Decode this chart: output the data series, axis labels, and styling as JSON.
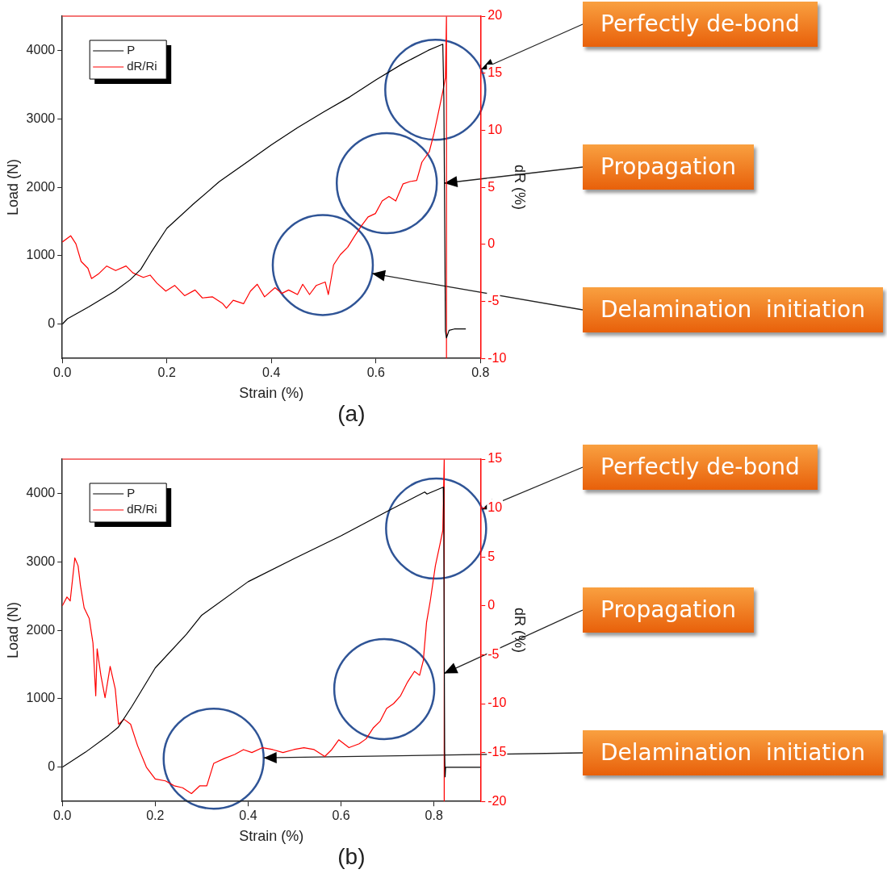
{
  "chart_data": [
    {
      "type": "line",
      "xlabel": "Strain (%)",
      "ylabel": "Load (N)",
      "y2label": "dR (%)",
      "xlim": [
        0,
        0.8
      ],
      "xticks": [
        {
          "value": 0,
          "label": "0.0"
        },
        0.2,
        0.4,
        0.6,
        0.8
      ],
      "ylim": [
        -500,
        4500
      ],
      "yticks": [
        0,
        1000,
        2000,
        3000,
        4000
      ],
      "y2lim": [
        -10,
        20
      ],
      "y2ticks": [
        -10,
        -5,
        0,
        5,
        10,
        15,
        20
      ],
      "legend": "top left",
      "grid": false,
      "marker": "none",
      "series": [
        {
          "name": "P",
          "color": "#000000",
          "x": [
            0,
            0.01,
            0.05,
            0.1,
            0.13,
            0.15,
            0.17,
            0.2,
            0.25,
            0.3,
            0.35,
            0.4,
            0.45,
            0.5,
            0.55,
            0.6,
            0.65,
            0.7,
            0.728,
            0.73,
            0.733,
            0.735,
            0.74,
            0.75,
            0.772
          ],
          "values": [
            0,
            80,
            250,
            480,
            650,
            800,
            1050,
            1400,
            1750,
            2080,
            2350,
            2620,
            2870,
            3100,
            3320,
            3570,
            3800,
            4000,
            4090,
            3300,
            -100,
            -200,
            -90,
            -70,
            -70
          ]
        },
        {
          "name": "dR/Ri",
          "color": "#ff0000",
          "axis": "y2",
          "x": [
            0,
            0.016,
            0.026,
            0.036,
            0.049,
            0.056,
            0.069,
            0.085,
            0.102,
            0.122,
            0.135,
            0.155,
            0.168,
            0.181,
            0.198,
            0.215,
            0.234,
            0.254,
            0.268,
            0.287,
            0.307,
            0.314,
            0.327,
            0.347,
            0.36,
            0.373,
            0.387,
            0.407,
            0.42,
            0.433,
            0.45,
            0.46,
            0.473,
            0.486,
            0.503,
            0.509,
            0.519,
            0.532,
            0.546,
            0.559,
            0.572,
            0.585,
            0.599,
            0.612,
            0.625,
            0.638,
            0.652,
            0.665,
            0.678,
            0.688,
            0.702,
            0.711,
            0.718,
            0.728,
            0.733,
            0.735,
            0.735
          ],
          "values": [
            0.2,
            0.75,
            0.05,
            -1.5,
            -2.1,
            -3.0,
            -2.6,
            -1.9,
            -2.3,
            -1.9,
            -2.5,
            -2.9,
            -2.7,
            -3.4,
            -4.1,
            -3.6,
            -4.5,
            -4.0,
            -4.7,
            -4.6,
            -5.2,
            -5.6,
            -4.9,
            -5.2,
            -4.1,
            -3.5,
            -4.6,
            -3.8,
            -4.3,
            -4.0,
            -4.4,
            -3.5,
            -4.4,
            -3.6,
            -3.3,
            -4.4,
            -1.8,
            -0.9,
            -0.25,
            0.7,
            1.6,
            2.4,
            2.7,
            3.8,
            4.2,
            3.8,
            5.3,
            5.5,
            5.6,
            7.2,
            8.1,
            9.7,
            11.2,
            13.4,
            14.6,
            20,
            -10
          ]
        }
      ],
      "annotations": [
        "Perfectly de-bond",
        {
          "text": "Propagation",
          "x": 0.731,
          "y": 2060
        },
        "Delamination  initiation",
        "(a)"
      ]
    },
    {
      "type": "line",
      "xlabel": "Strain (%)",
      "ylabel": "Load (N)",
      "y2label": "dR (%)",
      "xlim": [
        0,
        0.9
      ],
      "xticks": [
        {
          "value": 0,
          "label": "0.0"
        },
        0.2,
        0.4,
        0.6,
        0.8
      ],
      "ylim": [
        -500,
        4500
      ],
      "yticks": [
        0,
        1000,
        2000,
        3000,
        4000
      ],
      "y2lim": [
        -20,
        15
      ],
      "y2ticks": [
        -20,
        -15,
        -10,
        -5,
        0,
        5,
        10,
        15
      ],
      "legend": "top left",
      "grid": false,
      "marker": "none",
      "series": [
        {
          "name": "P",
          "color": "#000000",
          "x": [
            0,
            0.05,
            0.1,
            0.12,
            0.15,
            0.2,
            0.267,
            0.3,
            0.4,
            0.5,
            0.6,
            0.7,
            0.78,
            0.785,
            0.82,
            0.821,
            0.823,
            0.824,
            0.825,
            0.9
          ],
          "values": [
            0,
            220,
            470,
            580,
            890,
            1450,
            1940,
            2220,
            2710,
            3050,
            3380,
            3740,
            4020,
            3990,
            4090,
            3720,
            220,
            -140,
            0,
            0
          ]
        },
        {
          "name": "dR/Ri",
          "color": "#ff0000",
          "axis": "y2",
          "x": [
            0,
            0.01,
            0.017,
            0.027,
            0.034,
            0.039,
            0.047,
            0.058,
            0.066,
            0.072,
            0.075,
            0.083,
            0.092,
            0.103,
            0.114,
            0.121,
            0.133,
            0.147,
            0.162,
            0.181,
            0.2,
            0.222,
            0.241,
            0.259,
            0.278,
            0.296,
            0.311,
            0.326,
            0.349,
            0.371,
            0.39,
            0.408,
            0.431,
            0.453,
            0.475,
            0.498,
            0.52,
            0.542,
            0.565,
            0.58,
            0.595,
            0.617,
            0.639,
            0.654,
            0.669,
            0.684,
            0.698,
            0.713,
            0.728,
            0.743,
            0.758,
            0.769,
            0.777,
            0.784,
            0.792,
            0.803,
            0.812,
            0.819,
            0.822,
            0.822
          ],
          "values": [
            0,
            0.9,
            0.5,
            4.9,
            4.1,
            2.1,
            -0.2,
            -1.3,
            -3.8,
            -9.2,
            -4.4,
            -7.1,
            -9.4,
            -6.2,
            -8.5,
            -12.1,
            -11.6,
            -12.1,
            -14.3,
            -16.5,
            -17.7,
            -17.9,
            -18.4,
            -18.6,
            -19.2,
            -18.4,
            -18.4,
            -16.1,
            -15.6,
            -15.2,
            -14.7,
            -15.0,
            -14.5,
            -14.7,
            -15.0,
            -14.7,
            -14.5,
            -14.7,
            -15.4,
            -14.7,
            -13.7,
            -14.5,
            -14.1,
            -13.6,
            -12.5,
            -11.8,
            -10.5,
            -10.0,
            -9.2,
            -7.8,
            -6.7,
            -7.1,
            -5.6,
            -1.7,
            0.5,
            4.1,
            6.1,
            7.7,
            15,
            -20
          ]
        }
      ],
      "annotations": [
        "Perfectly de-bond",
        {
          "text": "Propagation",
          "x": 0.822,
          "y": 1370
        },
        "Delamination  initiation",
        "(b)"
      ]
    }
  ]
}
